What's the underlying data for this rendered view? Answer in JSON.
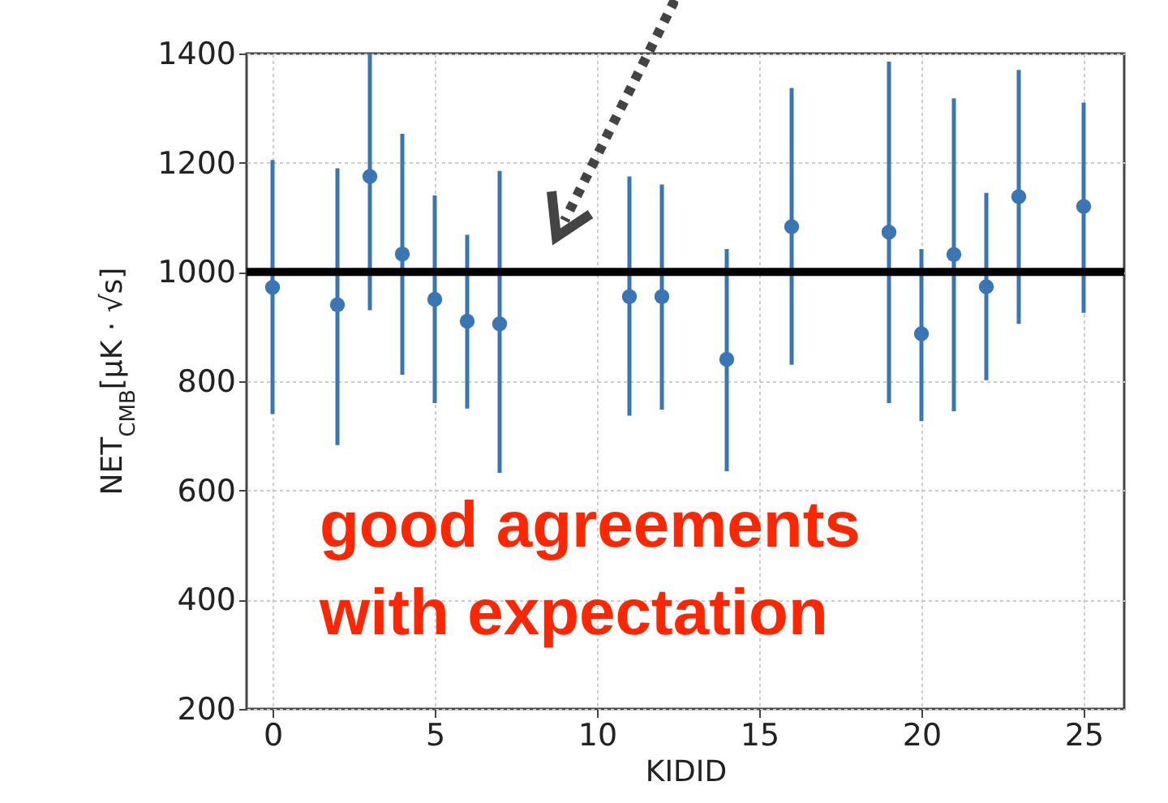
{
  "chart_data": {
    "type": "scatter",
    "xlabel": "KIDID",
    "ylabel": "NET$_{CMB}$[μK · √s]",
    "x": [
      0,
      2,
      3,
      4,
      5,
      6,
      7,
      11,
      12,
      14,
      16,
      19,
      20,
      21,
      22,
      23,
      25
    ],
    "series": [
      {
        "color": "#3a76b4",
        "values": [
          972,
          940,
          1175,
          1033,
          950,
          910,
          905,
          955,
          955,
          840,
          1083,
          1073,
          887,
          1032,
          973,
          1138,
          1120
        ],
        "errors": [
          [
            740,
            1205
          ],
          [
            683,
            1190
          ],
          [
            930,
            1400
          ],
          [
            812,
            1253
          ],
          [
            760,
            1140
          ],
          [
            750,
            1068
          ],
          [
            632,
            1185
          ],
          [
            737,
            1175
          ],
          [
            748,
            1160
          ],
          [
            635,
            1042
          ],
          [
            830,
            1337
          ],
          [
            760,
            1385
          ],
          [
            727,
            1042
          ],
          [
            745,
            1318
          ],
          [
            802,
            1145
          ],
          [
            905,
            1370
          ],
          [
            925,
            1310
          ]
        ]
      }
    ],
    "xlim": [
      -0.8,
      26.25
    ],
    "xticks": [
      0,
      5,
      10,
      15,
      20,
      25
    ],
    "ylim": [
      200,
      1400
    ],
    "yticks": [
      200,
      400,
      600,
      800,
      1000,
      1200,
      1400
    ],
    "ref_lines": [
      {
        "axis": "y",
        "value": 1000,
        "color": "#000000"
      }
    ],
    "annotations": [
      "good agreements with expectation"
    ],
    "grid": true,
    "marker": "circle"
  }
}
